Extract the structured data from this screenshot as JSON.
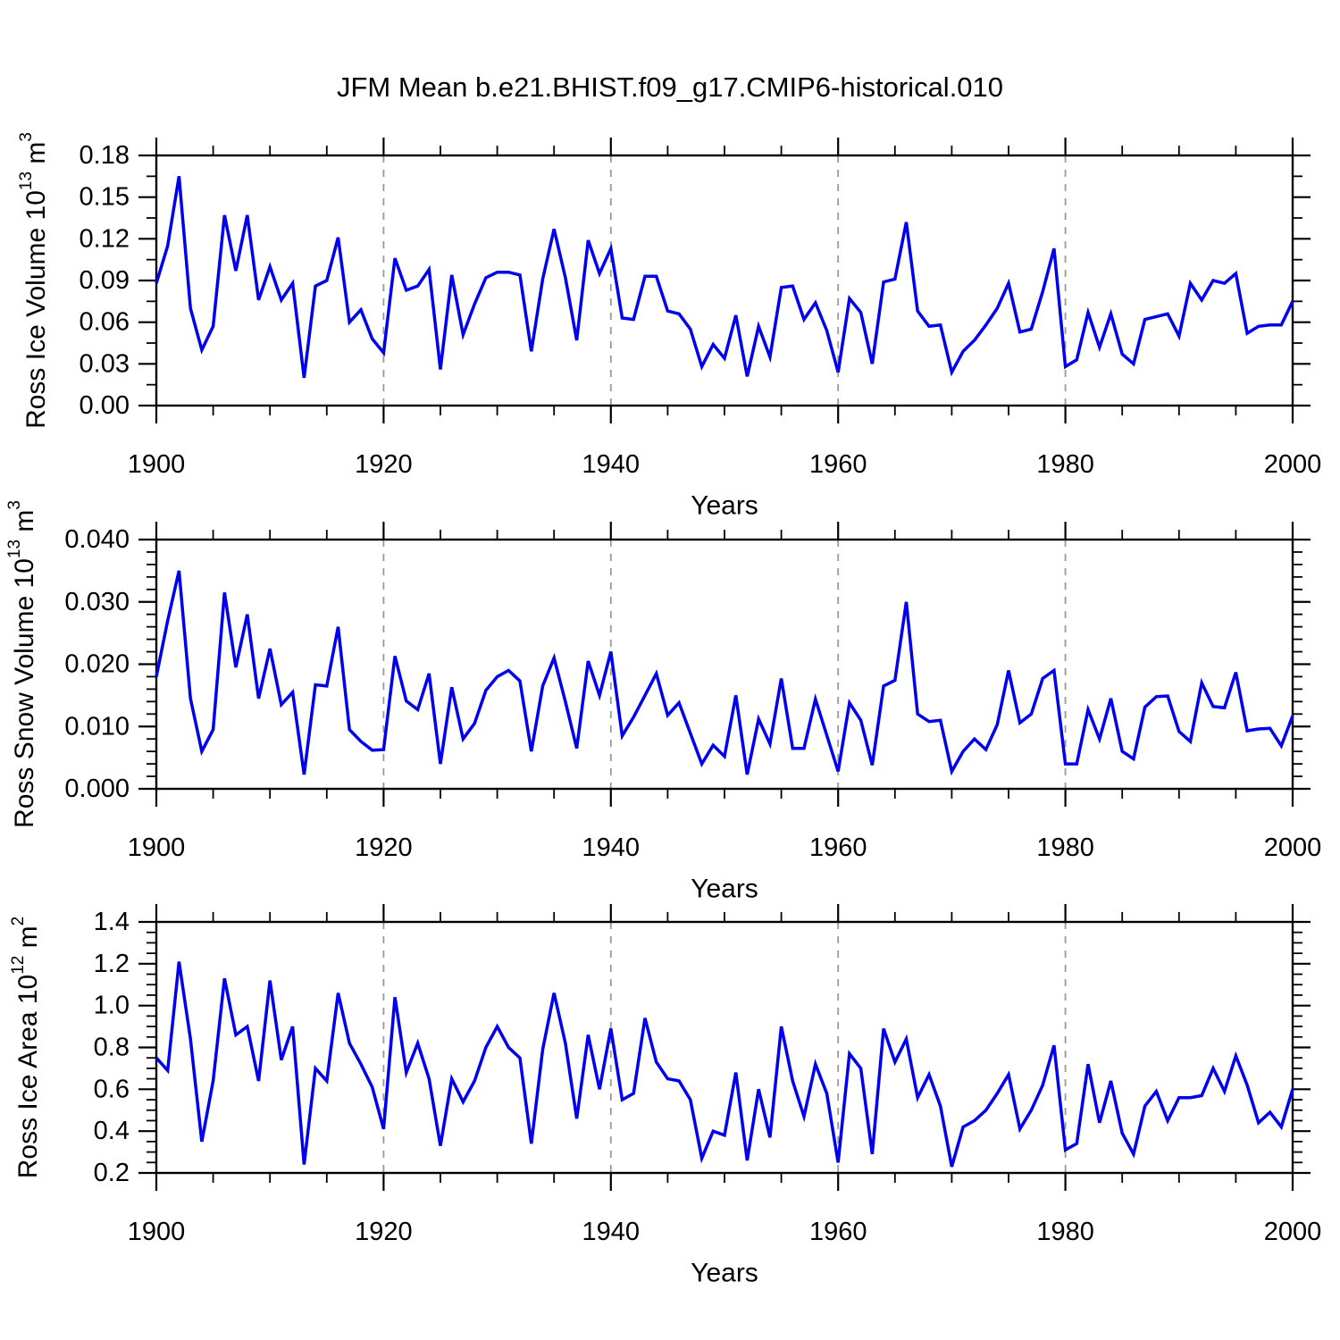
{
  "title": "JFM Mean b.e21.BHIST.f09_g17.CMIP6-historical.010",
  "colors": {
    "line": "#0000EE",
    "grid": "#999999",
    "frame": "#000000",
    "background": "#FFFFFF"
  },
  "years": [
    1900,
    1901,
    1902,
    1903,
    1904,
    1905,
    1906,
    1907,
    1908,
    1909,
    1910,
    1911,
    1912,
    1913,
    1914,
    1915,
    1916,
    1917,
    1918,
    1919,
    1920,
    1921,
    1922,
    1923,
    1924,
    1925,
    1926,
    1927,
    1928,
    1929,
    1930,
    1931,
    1932,
    1933,
    1934,
    1935,
    1936,
    1937,
    1938,
    1939,
    1940,
    1941,
    1942,
    1943,
    1944,
    1945,
    1946,
    1947,
    1948,
    1949,
    1950,
    1951,
    1952,
    1953,
    1954,
    1955,
    1956,
    1957,
    1958,
    1959,
    1960,
    1961,
    1962,
    1963,
    1964,
    1965,
    1966,
    1967,
    1968,
    1969,
    1970,
    1971,
    1972,
    1973,
    1974,
    1975,
    1976,
    1977,
    1978,
    1979,
    1980,
    1981,
    1982,
    1983,
    1984,
    1985,
    1986,
    1987,
    1988,
    1989,
    1990,
    1991,
    1992,
    1993,
    1994,
    1995,
    1996,
    1997,
    1998,
    1999,
    2000
  ],
  "chart_data": [
    {
      "id": "ross-ice-volume",
      "type": "line",
      "ylabel": "Ross Ice Volume 10^13 m^3",
      "xlabel": "Years",
      "xlim": [
        1900,
        2000
      ],
      "ylim": [
        0,
        0.18
      ],
      "x_tick_values": [
        1900,
        1920,
        1940,
        1960,
        1980,
        2000
      ],
      "x_tick_labels": [
        "1900",
        "1920",
        "1940",
        "1960",
        "1980",
        "2000"
      ],
      "x_minor_step": 5,
      "y_tick_values": [
        0.0,
        0.03,
        0.06,
        0.09,
        0.12,
        0.15,
        0.18
      ],
      "y_tick_labels": [
        "0.00",
        "0.03",
        "0.06",
        "0.09",
        "0.12",
        "0.15",
        "0.18"
      ],
      "y_minor_step": 0.015,
      "grid_x": [
        1920,
        1940,
        1960,
        1980
      ],
      "legend": "none",
      "grid": "dashed-vertical",
      "values": [
        0.088,
        0.115,
        0.165,
        0.07,
        0.04,
        0.057,
        0.137,
        0.097,
        0.137,
        0.076,
        0.1,
        0.076,
        0.088,
        0.02,
        0.086,
        0.09,
        0.121,
        0.06,
        0.069,
        0.048,
        0.038,
        0.106,
        0.083,
        0.086,
        0.098,
        0.026,
        0.094,
        0.051,
        0.073,
        0.092,
        0.096,
        0.096,
        0.094,
        0.039,
        0.091,
        0.127,
        0.092,
        0.047,
        0.119,
        0.095,
        0.113,
        0.063,
        0.062,
        0.093,
        0.093,
        0.068,
        0.066,
        0.055,
        0.028,
        0.044,
        0.034,
        0.065,
        0.021,
        0.057,
        0.035,
        0.085,
        0.086,
        0.062,
        0.074,
        0.054,
        0.024,
        0.077,
        0.067,
        0.03,
        0.089,
        0.091,
        0.132,
        0.068,
        0.057,
        0.058,
        0.024,
        0.039,
        0.047,
        0.058,
        0.07,
        0.088,
        0.053,
        0.055,
        0.082,
        0.113,
        0.028,
        0.033,
        0.067,
        0.042,
        0.066,
        0.037,
        0.03,
        0.062,
        0.064,
        0.066,
        0.05,
        0.088,
        0.076,
        0.09,
        0.088,
        0.095,
        0.052,
        0.057,
        0.058,
        0.058,
        0.075
      ]
    },
    {
      "id": "ross-snow-volume",
      "type": "line",
      "ylabel": "Ross Snow Volume 10^13 m^3",
      "xlabel": "Years",
      "xlim": [
        1900,
        2000
      ],
      "ylim": [
        0,
        0.04
      ],
      "x_tick_values": [
        1900,
        1920,
        1940,
        1960,
        1980,
        2000
      ],
      "x_tick_labels": [
        "1900",
        "1920",
        "1940",
        "1960",
        "1980",
        "2000"
      ],
      "x_minor_step": 5,
      "y_tick_values": [
        0.0,
        0.01,
        0.02,
        0.03,
        0.04
      ],
      "y_tick_labels": [
        "0.000",
        "0.010",
        "0.020",
        "0.030",
        "0.040"
      ],
      "y_minor_step": 0.002,
      "grid_x": [
        1920,
        1940,
        1960,
        1980
      ],
      "legend": "none",
      "grid": "dashed-vertical",
      "values": [
        0.018,
        0.027,
        0.035,
        0.0145,
        0.006,
        0.0095,
        0.0315,
        0.0195,
        0.028,
        0.0145,
        0.0225,
        0.0135,
        0.0155,
        0.0023,
        0.0167,
        0.0165,
        0.026,
        0.0095,
        0.0076,
        0.0062,
        0.0063,
        0.0213,
        0.0141,
        0.0127,
        0.0185,
        0.004,
        0.0163,
        0.008,
        0.0105,
        0.0158,
        0.018,
        0.019,
        0.0173,
        0.006,
        0.0165,
        0.021,
        0.014,
        0.0065,
        0.0205,
        0.015,
        0.022,
        0.0085,
        0.0115,
        0.015,
        0.0185,
        0.0118,
        0.0138,
        0.0089,
        0.004,
        0.007,
        0.0052,
        0.015,
        0.0023,
        0.0112,
        0.0072,
        0.0177,
        0.0065,
        0.0065,
        0.0144,
        0.0086,
        0.0028,
        0.0138,
        0.011,
        0.0038,
        0.0165,
        0.0174,
        0.03,
        0.012,
        0.0108,
        0.011,
        0.0028,
        0.006,
        0.008,
        0.0063,
        0.0103,
        0.019,
        0.0106,
        0.012,
        0.0177,
        0.019,
        0.004,
        0.004,
        0.0127,
        0.008,
        0.0145,
        0.006,
        0.0048,
        0.0131,
        0.0148,
        0.0149,
        0.0092,
        0.0076,
        0.017,
        0.0132,
        0.013,
        0.0187,
        0.0093,
        0.0096,
        0.0097,
        0.0069,
        0.0117
      ]
    },
    {
      "id": "ross-ice-area",
      "type": "line",
      "ylabel": "Ross Ice Area 10^12 m^2",
      "xlabel": "Years",
      "xlim": [
        1900,
        2000
      ],
      "ylim": [
        0.2,
        1.4
      ],
      "x_tick_values": [
        1900,
        1920,
        1940,
        1960,
        1980,
        2000
      ],
      "x_tick_labels": [
        "1900",
        "1920",
        "1940",
        "1960",
        "1980",
        "2000"
      ],
      "x_minor_step": 5,
      "y_tick_values": [
        0.2,
        0.4,
        0.6,
        0.8,
        1.0,
        1.2,
        1.4
      ],
      "y_tick_labels": [
        "0.2",
        "0.4",
        "0.6",
        "0.8",
        "1.0",
        "1.2",
        "1.4"
      ],
      "y_minor_step": 0.05,
      "grid_x": [
        1920,
        1940,
        1960,
        1980
      ],
      "legend": "none",
      "grid": "dashed-vertical",
      "values": [
        0.75,
        0.69,
        1.21,
        0.84,
        0.35,
        0.64,
        1.13,
        0.86,
        0.9,
        0.64,
        1.12,
        0.74,
        0.9,
        0.24,
        0.7,
        0.64,
        1.06,
        0.82,
        0.72,
        0.61,
        0.41,
        1.04,
        0.68,
        0.82,
        0.65,
        0.33,
        0.65,
        0.54,
        0.64,
        0.8,
        0.9,
        0.8,
        0.75,
        0.34,
        0.79,
        1.06,
        0.82,
        0.46,
        0.86,
        0.6,
        0.89,
        0.55,
        0.58,
        0.94,
        0.73,
        0.65,
        0.64,
        0.55,
        0.27,
        0.4,
        0.38,
        0.68,
        0.26,
        0.6,
        0.37,
        0.9,
        0.64,
        0.47,
        0.72,
        0.58,
        0.25,
        0.77,
        0.7,
        0.29,
        0.89,
        0.73,
        0.84,
        0.56,
        0.67,
        0.52,
        0.23,
        0.42,
        0.45,
        0.5,
        0.58,
        0.67,
        0.41,
        0.5,
        0.62,
        0.81,
        0.31,
        0.34,
        0.72,
        0.44,
        0.64,
        0.39,
        0.29,
        0.52,
        0.59,
        0.45,
        0.56,
        0.56,
        0.57,
        0.7,
        0.59,
        0.76,
        0.62,
        0.44,
        0.49,
        0.42,
        0.6
      ]
    }
  ]
}
